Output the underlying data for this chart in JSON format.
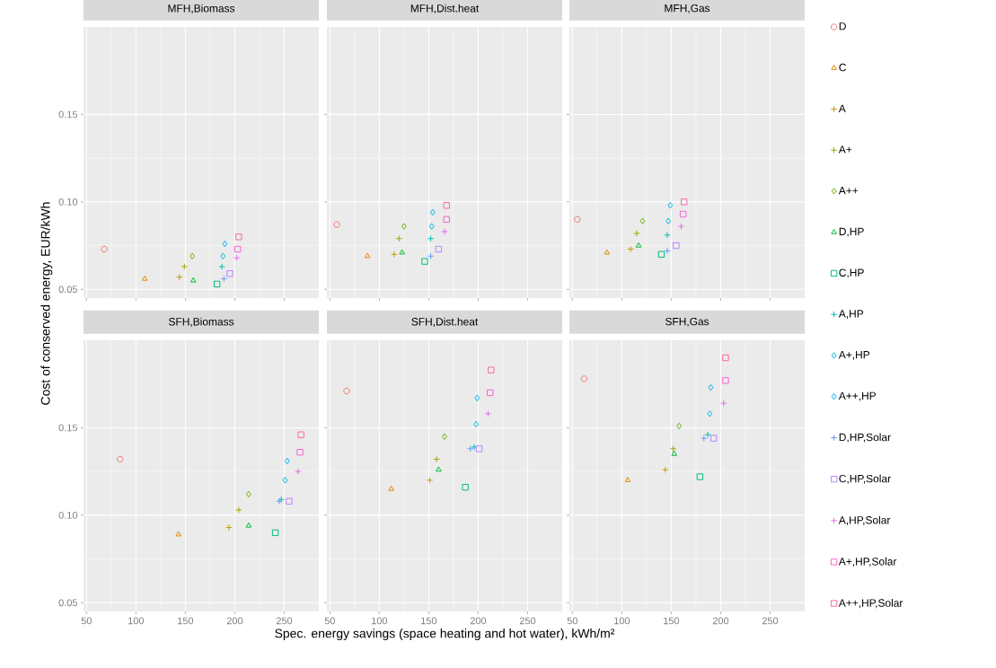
{
  "chart_data": [
    {
      "type": "scatter",
      "title": "MFH,Biomass",
      "ylabel": "Cost of conserved energy, EUR/kWh",
      "xlim": [
        47,
        285
      ],
      "ylim": [
        0.045,
        0.2
      ],
      "xticks": [
        50,
        100,
        150,
        200,
        250
      ],
      "yticks": [
        0.05,
        {
          "value": 0.1,
          "label": "0.10"
        },
        0.15
      ],
      "grid": true,
      "tick_labels": "y",
      "series": [
        {
          "color": "#F8766D",
          "marker": "circle",
          "x": [
            68
          ],
          "values": [
            0.073
          ]
        },
        {
          "color": "#E58700",
          "marker": "triangle",
          "x": [
            109
          ],
          "values": [
            0.056
          ]
        },
        {
          "color": "#C99800",
          "marker": "cross",
          "x": [
            144
          ],
          "values": [
            0.057
          ]
        },
        {
          "color": "#A3A500",
          "marker": "cross",
          "x": [
            149
          ],
          "values": [
            0.063
          ]
        },
        {
          "color": "#6BB100",
          "marker": "diamond",
          "x": [
            157
          ],
          "values": [
            0.069
          ]
        },
        {
          "color": "#00BA38",
          "marker": "triangle",
          "x": [
            158
          ],
          "values": [
            0.055
          ]
        },
        {
          "color": "#00BF7D",
          "marker": "square",
          "x": [
            182
          ],
          "values": [
            0.053
          ]
        },
        {
          "color": "#00C0AF",
          "marker": "cross",
          "x": [
            187
          ],
          "values": [
            0.063
          ]
        },
        {
          "color": "#00BCD8",
          "marker": "diamond",
          "x": [
            188
          ],
          "values": [
            0.069
          ]
        },
        {
          "color": "#00B0F6",
          "marker": "diamond",
          "x": [
            190
          ],
          "values": [
            0.076
          ]
        },
        {
          "color": "#619CFF",
          "marker": "cross",
          "x": [
            189
          ],
          "values": [
            0.056
          ]
        },
        {
          "color": "#B983FF",
          "marker": "square",
          "x": [
            195
          ],
          "values": [
            0.059
          ]
        },
        {
          "color": "#E76BF3",
          "marker": "cross",
          "x": [
            202
          ],
          "values": [
            0.068
          ]
        },
        {
          "color": "#FD61D1",
          "marker": "square",
          "x": [
            203
          ],
          "values": [
            0.073
          ]
        },
        {
          "color": "#FF67A4",
          "marker": "square",
          "x": [
            204
          ],
          "values": [
            0.08
          ]
        }
      ]
    },
    {
      "type": "scatter",
      "title": "MFH,Dist.heat",
      "xlim": [
        47,
        285
      ],
      "ylim": [
        0.045,
        0.2
      ],
      "xticks": [
        50,
        100,
        150,
        200,
        250
      ],
      "yticks": [
        0.05,
        0.1,
        0.15
      ],
      "grid": true,
      "tick_labels": false,
      "series": [
        {
          "color": "#F8766D",
          "marker": "circle",
          "x": [
            57
          ],
          "values": [
            0.087
          ]
        },
        {
          "color": "#E58700",
          "marker": "triangle",
          "x": [
            88
          ],
          "values": [
            0.069
          ]
        },
        {
          "color": "#C99800",
          "marker": "cross",
          "x": [
            115
          ],
          "values": [
            0.07
          ]
        },
        {
          "color": "#A3A500",
          "marker": "cross",
          "x": [
            120
          ],
          "values": [
            0.079
          ]
        },
        {
          "color": "#6BB100",
          "marker": "diamond",
          "x": [
            125
          ],
          "values": [
            0.086
          ]
        },
        {
          "color": "#00BA38",
          "marker": "triangle",
          "x": [
            123
          ],
          "values": [
            0.071
          ]
        },
        {
          "color": "#00BF7D",
          "marker": "square",
          "x": [
            146
          ],
          "values": [
            0.066
          ]
        },
        {
          "color": "#00C0AF",
          "marker": "cross",
          "x": [
            152
          ],
          "values": [
            0.079
          ]
        },
        {
          "color": "#00BCD8",
          "marker": "diamond",
          "x": [
            153
          ],
          "values": [
            0.086
          ]
        },
        {
          "color": "#00B0F6",
          "marker": "diamond",
          "x": [
            154
          ],
          "values": [
            0.094
          ]
        },
        {
          "color": "#619CFF",
          "marker": "cross",
          "x": [
            152
          ],
          "values": [
            0.069
          ]
        },
        {
          "color": "#B983FF",
          "marker": "square",
          "x": [
            160
          ],
          "values": [
            0.073
          ]
        },
        {
          "color": "#E76BF3",
          "marker": "cross",
          "x": [
            166
          ],
          "values": [
            0.083
          ]
        },
        {
          "color": "#FD61D1",
          "marker": "square",
          "x": [
            168
          ],
          "values": [
            0.09
          ]
        },
        {
          "color": "#FF67A4",
          "marker": "square",
          "x": [
            168
          ],
          "values": [
            0.098
          ]
        }
      ]
    },
    {
      "type": "scatter",
      "title": "MFH,Gas",
      "xlim": [
        47,
        285
      ],
      "ylim": [
        0.045,
        0.2
      ],
      "xticks": [
        50,
        100,
        150,
        200,
        250
      ],
      "yticks": [
        0.05,
        0.1,
        0.15
      ],
      "grid": true,
      "tick_labels": false,
      "legend": "right",
      "series": [
        {
          "name": "D",
          "color": "#F8766D",
          "marker": "circle",
          "x": [
            55
          ],
          "values": [
            0.09
          ]
        },
        {
          "name": "C",
          "color": "#E58700",
          "marker": "triangle",
          "x": [
            85
          ],
          "values": [
            0.071
          ]
        },
        {
          "name": "A",
          "color": "#C99800",
          "marker": "cross",
          "x": [
            109
          ],
          "values": [
            0.073
          ]
        },
        {
          "name": "A+",
          "color": "#A3A500",
          "marker": "cross",
          "x": [
            115
          ],
          "values": [
            0.082
          ]
        },
        {
          "name": "A++",
          "color": "#6BB100",
          "marker": "diamond",
          "x": [
            121
          ],
          "values": [
            0.089
          ]
        },
        {
          "name": "D,HP",
          "color": "#00BA38",
          "marker": "triangle",
          "x": [
            117
          ],
          "values": [
            0.075
          ]
        },
        {
          "name": "C,HP",
          "color": "#00BF7D",
          "marker": "square",
          "x": [
            140
          ],
          "values": [
            0.07
          ]
        },
        {
          "name": "A,HP",
          "color": "#00C0AF",
          "marker": "cross",
          "x": [
            146
          ],
          "values": [
            0.081
          ]
        },
        {
          "name": "A+,HP",
          "color": "#00BCD8",
          "marker": "diamond",
          "x": [
            147
          ],
          "values": [
            0.089
          ]
        },
        {
          "name": "A++,HP",
          "color": "#00B0F6",
          "marker": "diamond",
          "x": [
            149
          ],
          "values": [
            0.098
          ]
        },
        {
          "name": "D,HP,Solar",
          "color": "#619CFF",
          "marker": "cross",
          "x": [
            146
          ],
          "values": [
            0.072
          ]
        },
        {
          "name": "C,HP,Solar",
          "color": "#B983FF",
          "marker": "square",
          "x": [
            155
          ],
          "values": [
            0.075
          ]
        },
        {
          "name": "A,HP,Solar",
          "color": "#E76BF3",
          "marker": "cross",
          "x": [
            160
          ],
          "values": [
            0.086
          ]
        },
        {
          "name": "A+,HP,Solar",
          "color": "#FD61D1",
          "marker": "square",
          "x": [
            162
          ],
          "values": [
            0.093
          ]
        },
        {
          "name": "A++,HP,Solar",
          "color": "#FF67A4",
          "marker": "square",
          "x": [
            163
          ],
          "values": [
            0.1
          ]
        }
      ]
    },
    {
      "type": "scatter",
      "title": "SFH,Biomass",
      "xlim": [
        47,
        285
      ],
      "ylim": [
        0.045,
        0.2
      ],
      "xticks": [
        50,
        100,
        150,
        200,
        250
      ],
      "yticks": [
        0.05,
        {
          "value": 0.1,
          "label": "0.10"
        },
        0.15
      ],
      "grid": true,
      "series": [
        {
          "color": "#F8766D",
          "marker": "circle",
          "x": [
            84
          ],
          "values": [
            0.132
          ]
        },
        {
          "color": "#E58700",
          "marker": "triangle",
          "x": [
            143
          ],
          "values": [
            0.089
          ]
        },
        {
          "color": "#C99800",
          "marker": "cross",
          "x": [
            194
          ],
          "values": [
            0.093
          ]
        },
        {
          "color": "#A3A500",
          "marker": "cross",
          "x": [
            204
          ],
          "values": [
            0.103
          ]
        },
        {
          "color": "#6BB100",
          "marker": "diamond",
          "x": [
            214
          ],
          "values": [
            0.112
          ]
        },
        {
          "color": "#00BA38",
          "marker": "triangle",
          "x": [
            214
          ],
          "values": [
            0.094
          ]
        },
        {
          "color": "#00BF7D",
          "marker": "square",
          "x": [
            241
          ],
          "values": [
            0.09
          ]
        },
        {
          "color": "#00C0AF",
          "marker": "cross",
          "x": [
            247
          ],
          "values": [
            0.109
          ]
        },
        {
          "color": "#00BCD8",
          "marker": "diamond",
          "x": [
            251
          ],
          "values": [
            0.12
          ]
        },
        {
          "color": "#00B0F6",
          "marker": "diamond",
          "x": [
            253
          ],
          "values": [
            0.131
          ]
        },
        {
          "color": "#619CFF",
          "marker": "cross",
          "x": [
            245
          ],
          "values": [
            0.108
          ]
        },
        {
          "color": "#B983FF",
          "marker": "square",
          "x": [
            255
          ],
          "values": [
            0.108
          ]
        },
        {
          "color": "#E76BF3",
          "marker": "cross",
          "x": [
            264
          ],
          "values": [
            0.125
          ]
        },
        {
          "color": "#FD61D1",
          "marker": "square",
          "x": [
            266
          ],
          "values": [
            0.136
          ]
        },
        {
          "color": "#FF67A4",
          "marker": "square",
          "x": [
            267
          ],
          "values": [
            0.146
          ]
        }
      ]
    },
    {
      "type": "scatter",
      "title": "SFH,Dist.heat",
      "xlabel": "Spec. energy savings (space heating and hot water), kWh/m²",
      "xlim": [
        47,
        285
      ],
      "ylim": [
        0.045,
        0.2
      ],
      "xticks": [
        50,
        100,
        150,
        200,
        250
      ],
      "yticks": [
        0.05,
        0.1,
        0.15
      ],
      "grid": true,
      "tick_labels": "x",
      "series": [
        {
          "color": "#F8766D",
          "marker": "circle",
          "x": [
            67
          ],
          "values": [
            0.171
          ]
        },
        {
          "color": "#E58700",
          "marker": "triangle",
          "x": [
            112
          ],
          "values": [
            0.115
          ]
        },
        {
          "color": "#C99800",
          "marker": "cross",
          "x": [
            151
          ],
          "values": [
            0.12
          ]
        },
        {
          "color": "#A3A500",
          "marker": "cross",
          "x": [
            158
          ],
          "values": [
            0.132
          ]
        },
        {
          "color": "#6BB100",
          "marker": "diamond",
          "x": [
            166
          ],
          "values": [
            0.145
          ]
        },
        {
          "color": "#00BA38",
          "marker": "triangle",
          "x": [
            160
          ],
          "values": [
            0.126
          ]
        },
        {
          "color": "#00BF7D",
          "marker": "square",
          "x": [
            187
          ],
          "values": [
            0.116
          ]
        },
        {
          "color": "#00C0AF",
          "marker": "cross",
          "x": [
            196
          ],
          "values": [
            0.139
          ]
        },
        {
          "color": "#00BCD8",
          "marker": "diamond",
          "x": [
            198
          ],
          "values": [
            0.152
          ]
        },
        {
          "color": "#00B0F6",
          "marker": "diamond",
          "x": [
            199
          ],
          "values": [
            0.167
          ]
        },
        {
          "color": "#619CFF",
          "marker": "cross",
          "x": [
            192
          ],
          "values": [
            0.138
          ]
        },
        {
          "color": "#B983FF",
          "marker": "square",
          "x": [
            201
          ],
          "values": [
            0.138
          ]
        },
        {
          "color": "#E76BF3",
          "marker": "cross",
          "x": [
            210
          ],
          "values": [
            0.158
          ]
        },
        {
          "color": "#FD61D1",
          "marker": "square",
          "x": [
            212
          ],
          "values": [
            0.17
          ]
        },
        {
          "color": "#FF67A4",
          "marker": "square",
          "x": [
            213
          ],
          "values": [
            0.183
          ]
        }
      ]
    },
    {
      "type": "scatter",
      "title": "SFH,Gas",
      "xlim": [
        47,
        285
      ],
      "ylim": [
        0.045,
        0.2
      ],
      "xticks": [
        50,
        100,
        150,
        200,
        250
      ],
      "yticks": [
        0.05,
        0.1,
        0.15
      ],
      "grid": true,
      "tick_labels": "x",
      "series": [
        {
          "color": "#F8766D",
          "marker": "circle",
          "x": [
            62
          ],
          "values": [
            0.178
          ]
        },
        {
          "color": "#E58700",
          "marker": "triangle",
          "x": [
            106
          ],
          "values": [
            0.12
          ]
        },
        {
          "color": "#C99800",
          "marker": "cross",
          "x": [
            144
          ],
          "values": [
            0.126
          ]
        },
        {
          "color": "#A3A500",
          "marker": "cross",
          "x": [
            152
          ],
          "values": [
            0.138
          ]
        },
        {
          "color": "#6BB100",
          "marker": "diamond",
          "x": [
            158
          ],
          "values": [
            0.151
          ]
        },
        {
          "color": "#00BA38",
          "marker": "triangle",
          "x": [
            153
          ],
          "values": [
            0.135
          ]
        },
        {
          "color": "#00BF7D",
          "marker": "square",
          "x": [
            179
          ],
          "values": [
            0.122
          ]
        },
        {
          "color": "#00C0AF",
          "marker": "cross",
          "x": [
            187
          ],
          "values": [
            0.146
          ]
        },
        {
          "color": "#00BCD8",
          "marker": "diamond",
          "x": [
            189
          ],
          "values": [
            0.158
          ]
        },
        {
          "color": "#00B0F6",
          "marker": "diamond",
          "x": [
            190
          ],
          "values": [
            0.173
          ]
        },
        {
          "color": "#619CFF",
          "marker": "cross",
          "x": [
            183
          ],
          "values": [
            0.144
          ]
        },
        {
          "color": "#B983FF",
          "marker": "square",
          "x": [
            193
          ],
          "values": [
            0.144
          ]
        },
        {
          "color": "#E76BF3",
          "marker": "cross",
          "x": [
            203
          ],
          "values": [
            0.164
          ]
        },
        {
          "color": "#FD61D1",
          "marker": "square",
          "x": [
            205
          ],
          "values": [
            0.177
          ]
        },
        {
          "color": "#FF67A4",
          "marker": "square",
          "x": [
            205
          ],
          "values": [
            0.19
          ]
        }
      ]
    }
  ]
}
